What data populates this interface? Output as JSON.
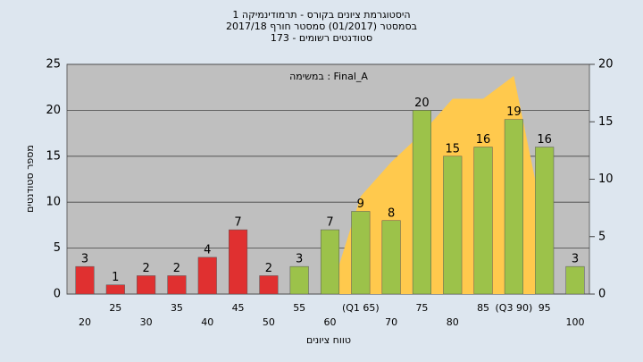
{
  "chart_data": {
    "type": "bar",
    "title": "היסטוגרמת ציונים בקורס - תרמודינמיקה 1",
    "subtitle": "בסמסטר  (01/2017)  סמסטר חורף 2017/18",
    "subtitle2": "סטודנטים רשומים - 173",
    "annotation": "במשימה : Final_A",
    "x_label": "טווח ציונים",
    "y_label": "מספר סטודנטים",
    "categories": [
      "20",
      "25",
      "30",
      "35",
      "40",
      "45",
      "50",
      "55",
      "60",
      "(Q1 65)",
      "70",
      "75",
      "80",
      "85",
      "(Q3 90)",
      "95",
      "100"
    ],
    "values": [
      3,
      1,
      2,
      2,
      4,
      7,
      2,
      3,
      7,
      9,
      8,
      20,
      15,
      16,
      19,
      16,
      3
    ],
    "bar_colors": [
      "#e03030",
      "#e03030",
      "#e03030",
      "#e03030",
      "#e03030",
      "#e03030",
      "#e03030",
      "#9cc24a",
      "#9cc24a",
      "#9cc24a",
      "#9cc24a",
      "#9cc24a",
      "#9cc24a",
      "#9cc24a",
      "#9cc24a",
      "#9cc24a",
      "#9cc24a"
    ],
    "area": {
      "color": "#ffc94d",
      "axis": "y2",
      "values": [
        null,
        null,
        null,
        null,
        null,
        null,
        null,
        null,
        0,
        8.5,
        11.5,
        14,
        17,
        17,
        19,
        6,
        null
      ]
    },
    "ylim": [
      0,
      25
    ],
    "yticks": [
      0,
      5,
      10,
      15,
      20,
      25
    ],
    "y2lim": [
      0,
      20
    ],
    "y2ticks": [
      0,
      5,
      10,
      15,
      20
    ],
    "grid": true
  }
}
